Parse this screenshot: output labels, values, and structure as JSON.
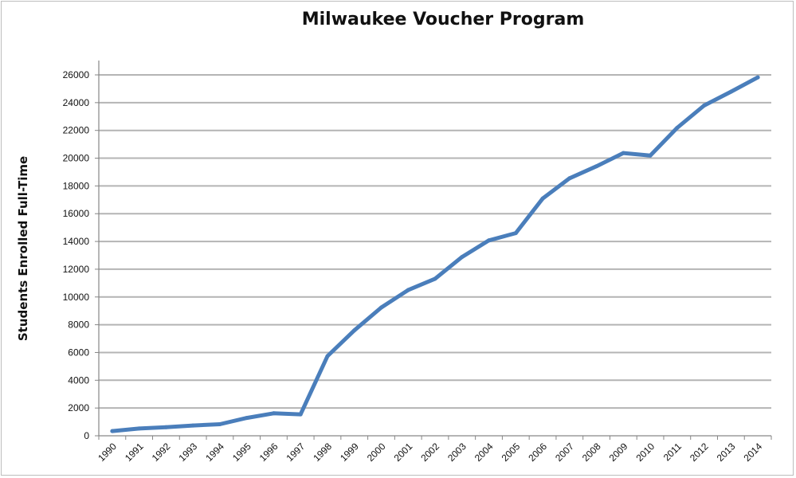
{
  "chart_data": {
    "type": "line",
    "title": "Milwaukee Voucher Program",
    "xlabel": "",
    "ylabel": "Students Enrolled Full-Time",
    "ylim": [
      0,
      26000
    ],
    "yticks": [
      0,
      2000,
      4000,
      6000,
      8000,
      10000,
      12000,
      14000,
      16000,
      18000,
      20000,
      22000,
      24000,
      26000
    ],
    "grid": "horizontal",
    "legend": "none",
    "x": [
      "1990",
      "1991",
      "1992",
      "1993",
      "1994",
      "1995",
      "1996",
      "1997",
      "1998",
      "1999",
      "2000",
      "2001",
      "2002",
      "2003",
      "2004",
      "2005",
      "2006",
      "2007",
      "2008",
      "2009",
      "2010",
      "2011",
      "2012",
      "2013",
      "2014"
    ],
    "series": [
      {
        "values": [
          337,
          521,
          613,
          742,
          830,
          1288,
          1616,
          1545,
          5740,
          7596,
          9238,
          10497,
          11312,
          12882,
          14071,
          14604,
          17088,
          18550,
          19414,
          20372,
          20189,
          22184,
          23789,
          24787,
          25820
        ],
        "color": "#4a7ebb"
      }
    ],
    "colors": {
      "line": "#4a7ebb",
      "grid": "#b4b4b4",
      "axis": "#868686"
    }
  }
}
